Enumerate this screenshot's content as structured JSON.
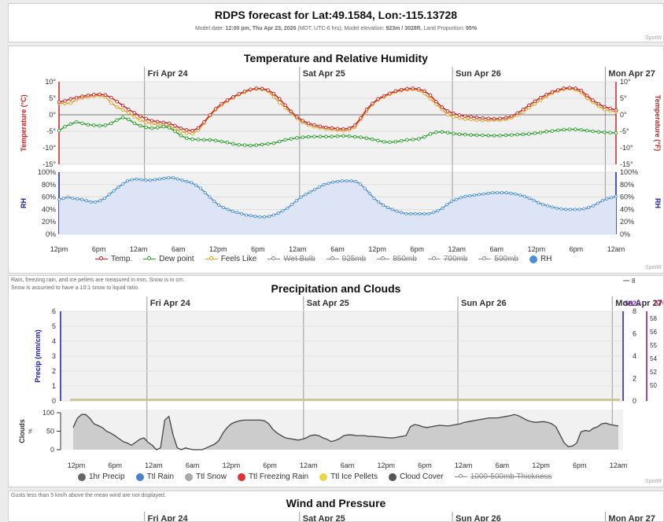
{
  "header": {
    "title": "RDPS forecast for Lat:49.1584, Lon:-115.13728",
    "model_date_label": "Model date: ",
    "model_date": "12:00 pm, Thu Apr 23, 2026",
    "tz_elev_label": " (MDT, UTC-6 hrs), Model elevation: ",
    "elevation": "923m / 3028ft",
    "land_label": ", Land Proportion: ",
    "land": "95%",
    "watermark": "SpotW"
  },
  "colors": {
    "temp": "#cc2222",
    "dew": "#2aa02a",
    "feels": "#e8a020",
    "rh": "#4a90d9",
    "cloud_fill": "#cccccc",
    "cloud_line": "#444444",
    "precip_axis": "#1a1aa8",
    "snow_axis": "#8a0a8a"
  },
  "days": [
    "Fri Apr 24",
    "Sat Apr 25",
    "Sun Apr 26",
    "Mon Apr 27"
  ],
  "hour_labels": [
    "12pm",
    "6pm",
    "12am",
    "6am",
    "12pm",
    "6pm",
    "12am",
    "6am",
    "12pm",
    "6pm",
    "12am",
    "6am",
    "12pm",
    "6pm",
    "12am"
  ],
  "temp_panel": {
    "title": "Temperature and Relative Humidity",
    "y_title_left": "Temperature (°C)",
    "y_title_right": "Temperature (°F)",
    "ticks_left": [
      "10°",
      "5°",
      "0°",
      "-5°",
      "-10°",
      "-15°"
    ],
    "ticks_right": [
      "10°",
      "5°",
      "0°",
      "-5°",
      "-10°",
      "-15°"
    ],
    "rh_title_left": "RH",
    "rh_title_right": "RH",
    "rh_ticks": [
      "100%",
      "80%",
      "60%",
      "40%",
      "20%",
      "0%"
    ],
    "legend": [
      {
        "label": "Temp.",
        "color": "#cc2222",
        "struck": false,
        "kind": "line"
      },
      {
        "label": "Dew point",
        "color": "#2aa02a",
        "struck": false,
        "kind": "line"
      },
      {
        "label": "Feels Like",
        "color": "#e8a020",
        "struck": false,
        "kind": "line"
      },
      {
        "label": "Wet Bulb",
        "color": "#888888",
        "struck": true,
        "kind": "line"
      },
      {
        "label": "925mb",
        "color": "#888888",
        "struck": true,
        "kind": "line"
      },
      {
        "label": "850mb",
        "color": "#888888",
        "struck": true,
        "kind": "line"
      },
      {
        "label": "700mb",
        "color": "#888888",
        "struck": true,
        "kind": "line"
      },
      {
        "label": "500mb",
        "color": "#888888",
        "struck": true,
        "kind": "line"
      },
      {
        "label": "RH",
        "color": "#4a90d9",
        "struck": false,
        "kind": "dot"
      }
    ],
    "watermark": "SpotW"
  },
  "precip_panel": {
    "title": "Precipitation and Clouds",
    "note_line1": "Rain, freezing rain, and ice pellets are measured in mm. Snow is in cm.",
    "note_line2": "Snow is assumed to have a 10:1 snow to liquid ratio.",
    "y_title": "Precip (mm/cm)",
    "ticks_left": [
      "6",
      "5",
      "4",
      "3",
      "2",
      "1",
      "0"
    ],
    "ticks_right": [
      "8",
      "6",
      "4",
      "2",
      "0"
    ],
    "far_right_ticks": [
      "58",
      "56",
      "55",
      "54",
      "52",
      "50"
    ],
    "far_right_label_1": "5820",
    "far_right_label_2": "570",
    "top_axis_right_label": "8",
    "clouds_title": "Clouds",
    "clouds_unit": "%",
    "cloud_ticks": [
      "100",
      "50",
      "0"
    ],
    "legend": [
      {
        "label": "1hr Precip",
        "color": "#666666",
        "struck": false,
        "kind": "dot"
      },
      {
        "label": "Ttl Rain",
        "color": "#4a7fd4",
        "struck": false,
        "kind": "dot"
      },
      {
        "label": "Ttl Snow",
        "color": "#aaaaaa",
        "struck": false,
        "kind": "dot"
      },
      {
        "label": "Ttl Freezing Rain",
        "color": "#dd3333",
        "struck": false,
        "kind": "dot"
      },
      {
        "label": "Ttl Ice Pellets",
        "color": "#e6d84a",
        "struck": false,
        "kind": "dot"
      },
      {
        "label": "Cloud Cover",
        "color": "#555555",
        "struck": false,
        "kind": "dot"
      },
      {
        "label": "1000-500mb Thickness",
        "color": "#888888",
        "struck": true,
        "kind": "line"
      }
    ],
    "watermark": "SpotW"
  },
  "wind_panel": {
    "title": "Wind and Pressure",
    "note": "Gusts less than 5 km/h above the mean wind are not displayed."
  },
  "chart_data": [
    {
      "type": "line",
      "title": "Temperature and Relative Humidity",
      "ylabel": "Temperature (°C)",
      "ylim": [
        -15,
        10
      ],
      "x_start": "12pm Thu Apr 23",
      "x_step_hours": 1,
      "series": [
        {
          "name": "Temp.",
          "values": [
            3.9,
            4.2,
            4.8,
            5.2,
            5.6,
            5.9,
            6.1,
            6.2,
            6.0,
            5.2,
            4.0,
            2.8,
            1.6,
            0.6,
            -0.4,
            -1.2,
            -1.8,
            -2.1,
            -2.3,
            -2.6,
            -3.3,
            -4.1,
            -4.6,
            -4.8,
            -4.0,
            -2.2,
            -0.1,
            1.8,
            3.3,
            4.4,
            5.4,
            6.3,
            7.1,
            7.7,
            8.0,
            7.9,
            7.5,
            6.4,
            4.8,
            2.9,
            1.0,
            -0.6,
            -1.8,
            -2.6,
            -3.1,
            -3.5,
            -3.8,
            -4.0,
            -4.2,
            -4.3,
            -4.1,
            -3.2,
            -1.0,
            1.6,
            3.4,
            4.8,
            5.7,
            6.5,
            7.2,
            7.6,
            7.9,
            8.0,
            7.8,
            7.2,
            5.9,
            4.0,
            2.3,
            1.1,
            0.4,
            -0.1,
            -0.4,
            -0.6,
            -0.8,
            -1.0,
            -1.1,
            -1.2,
            -1.1,
            -0.9,
            -0.4,
            0.5,
            1.6,
            2.9,
            4.1,
            5.2,
            6.1,
            6.9,
            7.5,
            8.0,
            8.2,
            8.0,
            7.3,
            5.8,
            4.4,
            3.3,
            2.4,
            1.9,
            1.4
          ]
        },
        {
          "name": "Dew point",
          "values": [
            -4.8,
            -3.6,
            -2.8,
            -2.2,
            -2.6,
            -3.0,
            -3.2,
            -3.3,
            -3.2,
            -2.6,
            -1.6,
            -0.8,
            -1.4,
            -2.6,
            -3.3,
            -3.8,
            -4.1,
            -3.9,
            -3.6,
            -3.9,
            -5.0,
            -6.3,
            -7.1,
            -7.4,
            -7.5,
            -7.6,
            -7.6,
            -7.8,
            -8.1,
            -8.4,
            -8.8,
            -9.1,
            -9.2,
            -9.3,
            -9.2,
            -9.0,
            -8.8,
            -8.6,
            -8.1,
            -7.6,
            -7.3,
            -7.0,
            -6.8,
            -6.7,
            -6.6,
            -6.6,
            -6.6,
            -6.6,
            -6.5,
            -6.4,
            -6.5,
            -6.7,
            -6.8,
            -7.1,
            -7.4,
            -7.8,
            -8.2,
            -8.3,
            -8.2,
            -7.9,
            -7.6,
            -7.5,
            -7.3,
            -6.7,
            -5.8,
            -5.3,
            -5.2,
            -5.4,
            -5.7,
            -5.9,
            -6.0,
            -6.1,
            -6.2,
            -6.2,
            -6.3,
            -6.3,
            -6.3,
            -6.2,
            -6.1,
            -6.0,
            -5.9,
            -5.8,
            -5.6,
            -5.4,
            -5.1,
            -4.9,
            -4.7,
            -4.5,
            -4.4,
            -4.4,
            -4.6,
            -4.8,
            -5.0,
            -5.2,
            -5.3,
            -5.4,
            -5.5
          ]
        },
        {
          "name": "Feels Like",
          "values": [
            3.5,
            3.4,
            3.5,
            4.6,
            5.1,
            5.4,
            5.7,
            5.8,
            5.4,
            3.6,
            2.3,
            1.5,
            0.6,
            -0.6,
            -1.6,
            -2.3,
            -2.7,
            -2.9,
            -3.1,
            -3.5,
            -4.3,
            -5.0,
            -5.5,
            -5.7,
            -4.7,
            -2.6,
            -0.3,
            1.5,
            2.8,
            4.2,
            5.1,
            6.1,
            6.8,
            7.5,
            7.8,
            7.7,
            7.2,
            5.4,
            3.7,
            2.1,
            0.5,
            -1.1,
            -2.3,
            -3.1,
            -3.6,
            -4.0,
            -4.3,
            -4.5,
            -4.7,
            -4.8,
            -4.6,
            -3.7,
            -1.4,
            1.0,
            3.1,
            4.5,
            5.4,
            6.2,
            6.9,
            7.3,
            7.6,
            7.7,
            7.4,
            6.4,
            4.8,
            3.2,
            1.6,
            0.0,
            -0.6,
            -1.0,
            -1.3,
            -1.4,
            -1.6,
            -1.7,
            -1.7,
            -1.6,
            -1.6,
            -1.4,
            -0.9,
            -0.1,
            0.8,
            2.1,
            3.3,
            4.4,
            5.6,
            6.6,
            7.2,
            7.7,
            7.9,
            7.6,
            6.7,
            5.0,
            3.8,
            2.6,
            1.6,
            1.2,
            0.9
          ]
        }
      ]
    },
    {
      "type": "area",
      "title": "RH",
      "ylabel": "RH",
      "ylim": [
        0,
        100
      ],
      "x_start": "12pm Thu Apr 23",
      "x_step_hours": 1,
      "series": [
        {
          "name": "RH",
          "values": [
            56,
            58,
            60,
            58,
            57,
            56,
            54,
            52,
            52,
            54,
            58,
            64,
            70,
            76,
            81,
            86,
            88,
            89,
            88,
            87,
            87,
            88,
            89,
            90,
            91,
            91,
            89,
            87,
            85,
            83,
            79,
            74,
            67,
            60,
            53,
            47,
            43,
            40,
            37,
            35,
            33,
            31,
            30,
            29,
            28,
            28,
            29,
            31,
            34,
            38,
            42,
            48,
            54,
            60,
            64,
            68,
            72,
            76,
            80,
            82,
            84,
            85,
            86,
            86,
            86,
            85,
            81,
            74,
            66,
            58,
            52,
            47,
            43,
            40,
            37,
            35,
            33,
            33,
            33,
            33,
            33,
            33,
            35,
            38,
            42,
            48,
            53,
            56,
            59,
            61,
            62,
            63,
            64,
            65,
            66,
            67,
            67,
            67,
            67,
            66,
            65,
            63,
            61,
            58,
            55,
            51,
            48,
            46,
            44,
            42,
            41,
            40,
            40,
            40,
            40,
            41,
            43,
            46,
            50,
            54,
            57,
            59,
            61
          ]
        }
      ]
    },
    {
      "type": "line",
      "title": "Precipitation and Clouds",
      "ylabel": "Precip (mm/cm)",
      "ylim": [
        0,
        6
      ],
      "series": [
        {
          "name": "1hr Precip",
          "values": [
            0
          ]
        },
        {
          "name": "Ttl Rain",
          "values": [
            0
          ]
        },
        {
          "name": "Ttl Snow",
          "values": [
            0
          ]
        },
        {
          "name": "Ttl Freezing Rain",
          "values": [
            0
          ]
        },
        {
          "name": "Ttl Ice Pellets",
          "values": [
            0
          ]
        }
      ]
    },
    {
      "type": "area",
      "title": "Clouds",
      "ylabel": "Clouds %",
      "ylim": [
        0,
        100
      ],
      "x_start": "12pm Thu Apr 23",
      "x_step_hours": 1,
      "series": [
        {
          "name": "Cloud Cover",
          "values": [
            60,
            85,
            95,
            95,
            85,
            70,
            65,
            60,
            50,
            45,
            38,
            30,
            22,
            18,
            12,
            20,
            28,
            32,
            20,
            12,
            0,
            5,
            80,
            90,
            40,
            5,
            0,
            5,
            2,
            0,
            0,
            0,
            5,
            10,
            15,
            25,
            45,
            60,
            70,
            75,
            78,
            80,
            80,
            80,
            80,
            80,
            78,
            70,
            55,
            45,
            38,
            32,
            30,
            28,
            26,
            28,
            32,
            38,
            40,
            38,
            32,
            28,
            22,
            25,
            30,
            38,
            40,
            40,
            38,
            38,
            38,
            36,
            36,
            35,
            34,
            33,
            32,
            32,
            34,
            36,
            38,
            62,
            68,
            66,
            62,
            60,
            62,
            64,
            66,
            65,
            64,
            66,
            68,
            70,
            74,
            76,
            78,
            80,
            82,
            84,
            86,
            86,
            86,
            88,
            90,
            92,
            95,
            92,
            86,
            80,
            76,
            74,
            75,
            76,
            74,
            70,
            62,
            40,
            18,
            8,
            10,
            18,
            48,
            52,
            50,
            58,
            62,
            70,
            72,
            68,
            66,
            64
          ]
        }
      ]
    }
  ]
}
